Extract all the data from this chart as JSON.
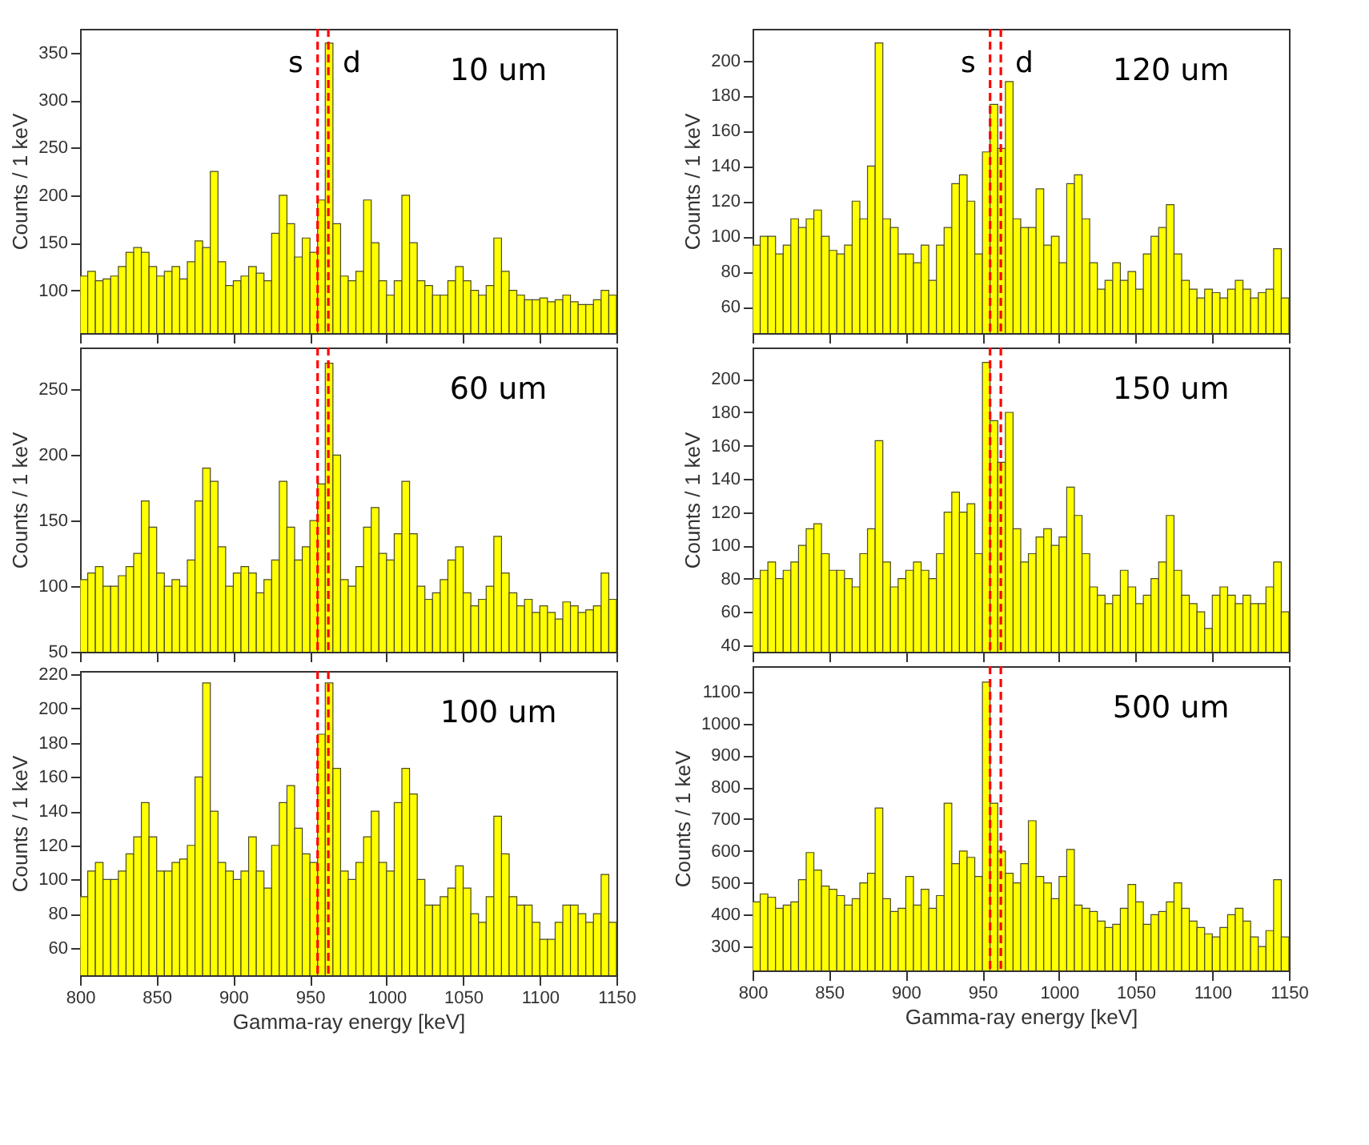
{
  "chart_data": [
    {
      "type": "histogram",
      "annotations": [
        "10 um"
      ],
      "ylabel": "Counts / 1 keV",
      "color": "#ffff00",
      "tick_labels": "y",
      "xlim": [
        800,
        1150
      ],
      "xticks": [
        800,
        850,
        900,
        950,
        1000,
        1050,
        1100,
        1150
      ],
      "ylim": [
        55,
        375
      ],
      "yticks": [
        100,
        150,
        200,
        250,
        300,
        350
      ],
      "ref_lines": [
        {
          "axis": "x",
          "value": 955,
          "label": "s",
          "color": "#ff0000",
          "line_style": "dashed"
        },
        {
          "axis": "x",
          "value": 962,
          "label": "d",
          "color": "#ff0000",
          "line_style": "dashed"
        }
      ],
      "bins": [
        800,
        805,
        810,
        815,
        820,
        825,
        830,
        835,
        840,
        845,
        850,
        855,
        860,
        865,
        870,
        875,
        880,
        885,
        890,
        895,
        900,
        905,
        910,
        915,
        920,
        925,
        930,
        935,
        940,
        945,
        950,
        955,
        960,
        965,
        970,
        975,
        980,
        985,
        990,
        995,
        1000,
        1005,
        1010,
        1015,
        1020,
        1025,
        1030,
        1035,
        1040,
        1045,
        1050,
        1055,
        1060,
        1065,
        1070,
        1075,
        1080,
        1085,
        1090,
        1095,
        1100,
        1105,
        1110,
        1115,
        1120,
        1125,
        1130,
        1135,
        1140,
        1145,
        1150
      ],
      "values": [
        115,
        120,
        110,
        112,
        115,
        125,
        140,
        145,
        140,
        125,
        115,
        120,
        125,
        112,
        130,
        152,
        145,
        225,
        130,
        105,
        110,
        115,
        125,
        118,
        110,
        160,
        200,
        170,
        135,
        155,
        140,
        195,
        360,
        170,
        115,
        110,
        120,
        195,
        150,
        110,
        95,
        110,
        200,
        150,
        110,
        105,
        95,
        95,
        110,
        125,
        110,
        100,
        95,
        105,
        155,
        120,
        100,
        95,
        90,
        90,
        92,
        88,
        90,
        95,
        88,
        85,
        85,
        90,
        100,
        95
      ]
    },
    {
      "type": "histogram",
      "annotations": [
        "120 um"
      ],
      "ylabel": "Counts / 1 keV",
      "color": "#ffff00",
      "tick_labels": "y",
      "xlim": [
        800,
        1150
      ],
      "xticks": [
        800,
        850,
        900,
        950,
        1000,
        1050,
        1100,
        1150
      ],
      "ylim": [
        45,
        218
      ],
      "yticks": [
        60,
        80,
        100,
        120,
        140,
        160,
        180,
        200
      ],
      "ref_lines": [
        {
          "axis": "x",
          "value": 955,
          "label": "s",
          "color": "#ff0000",
          "line_style": "dashed"
        },
        {
          "axis": "x",
          "value": 962,
          "label": "d",
          "color": "#ff0000",
          "line_style": "dashed"
        }
      ],
      "bins": [
        800,
        805,
        810,
        815,
        820,
        825,
        830,
        835,
        840,
        845,
        850,
        855,
        860,
        865,
        870,
        875,
        880,
        885,
        890,
        895,
        900,
        905,
        910,
        915,
        920,
        925,
        930,
        935,
        940,
        945,
        950,
        955,
        960,
        965,
        970,
        975,
        980,
        985,
        990,
        995,
        1000,
        1005,
        1010,
        1015,
        1020,
        1025,
        1030,
        1035,
        1040,
        1045,
        1050,
        1055,
        1060,
        1065,
        1070,
        1075,
        1080,
        1085,
        1090,
        1095,
        1100,
        1105,
        1110,
        1115,
        1120,
        1125,
        1130,
        1135,
        1140,
        1145,
        1150
      ],
      "values": [
        95,
        100,
        100,
        90,
        95,
        110,
        105,
        110,
        115,
        100,
        92,
        90,
        95,
        120,
        110,
        140,
        210,
        110,
        105,
        90,
        90,
        85,
        95,
        75,
        95,
        105,
        130,
        135,
        120,
        90,
        148,
        175,
        150,
        188,
        110,
        105,
        105,
        127,
        95,
        100,
        85,
        130,
        135,
        110,
        85,
        70,
        75,
        85,
        75,
        80,
        70,
        90,
        100,
        105,
        118,
        90,
        75,
        70,
        65,
        70,
        68,
        65,
        70,
        75,
        70,
        65,
        68,
        70,
        93,
        65
      ]
    },
    {
      "type": "histogram",
      "annotations": [
        "60 um"
      ],
      "ylabel": "Counts / 1 keV",
      "color": "#ffff00",
      "tick_labels": "y",
      "xlim": [
        800,
        1150
      ],
      "xticks": [
        800,
        850,
        900,
        950,
        1000,
        1050,
        1100,
        1150
      ],
      "ylim": [
        50,
        282
      ],
      "yticks": [
        50,
        100,
        150,
        200,
        250
      ],
      "ref_lines": [
        {
          "axis": "x",
          "value": 955,
          "color": "#ff0000",
          "line_style": "dashed"
        },
        {
          "axis": "x",
          "value": 962,
          "color": "#ff0000",
          "line_style": "dashed"
        }
      ],
      "bins": [
        800,
        805,
        810,
        815,
        820,
        825,
        830,
        835,
        840,
        845,
        850,
        855,
        860,
        865,
        870,
        875,
        880,
        885,
        890,
        895,
        900,
        905,
        910,
        915,
        920,
        925,
        930,
        935,
        940,
        945,
        950,
        955,
        960,
        965,
        970,
        975,
        980,
        985,
        990,
        995,
        1000,
        1005,
        1010,
        1015,
        1020,
        1025,
        1030,
        1035,
        1040,
        1045,
        1050,
        1055,
        1060,
        1065,
        1070,
        1075,
        1080,
        1085,
        1090,
        1095,
        1100,
        1105,
        1110,
        1115,
        1120,
        1125,
        1130,
        1135,
        1140,
        1145,
        1150
      ],
      "values": [
        105,
        110,
        115,
        100,
        100,
        108,
        115,
        125,
        165,
        145,
        110,
        100,
        105,
        100,
        120,
        165,
        190,
        180,
        130,
        100,
        110,
        115,
        110,
        95,
        105,
        120,
        180,
        145,
        120,
        130,
        150,
        178,
        270,
        200,
        105,
        100,
        115,
        145,
        160,
        125,
        120,
        140,
        180,
        140,
        100,
        90,
        95,
        105,
        120,
        130,
        95,
        85,
        90,
        100,
        138,
        110,
        95,
        85,
        90,
        80,
        85,
        80,
        75,
        88,
        85,
        80,
        82,
        85,
        110,
        90
      ]
    },
    {
      "type": "histogram",
      "annotations": [
        "150 um"
      ],
      "ylabel": "Counts / 1 keV",
      "color": "#ffff00",
      "tick_labels": "y",
      "xlim": [
        800,
        1150
      ],
      "xticks": [
        800,
        850,
        900,
        950,
        1000,
        1050,
        1100,
        1150
      ],
      "ylim": [
        36,
        219
      ],
      "yticks": [
        40,
        60,
        80,
        100,
        120,
        140,
        160,
        180,
        200
      ],
      "ref_lines": [
        {
          "axis": "x",
          "value": 955,
          "color": "#ff0000",
          "line_style": "dashed"
        },
        {
          "axis": "x",
          "value": 962,
          "color": "#ff0000",
          "line_style": "dashed"
        }
      ],
      "bins": [
        800,
        805,
        810,
        815,
        820,
        825,
        830,
        835,
        840,
        845,
        850,
        855,
        860,
        865,
        870,
        875,
        880,
        885,
        890,
        895,
        900,
        905,
        910,
        915,
        920,
        925,
        930,
        935,
        940,
        945,
        950,
        955,
        960,
        965,
        970,
        975,
        980,
        985,
        990,
        995,
        1000,
        1005,
        1010,
        1015,
        1020,
        1025,
        1030,
        1035,
        1040,
        1045,
        1050,
        1055,
        1060,
        1065,
        1070,
        1075,
        1080,
        1085,
        1090,
        1095,
        1100,
        1105,
        1110,
        1115,
        1120,
        1125,
        1130,
        1135,
        1140,
        1145,
        1150
      ],
      "values": [
        80,
        85,
        90,
        80,
        85,
        90,
        100,
        110,
        113,
        95,
        85,
        85,
        80,
        75,
        95,
        110,
        163,
        90,
        75,
        80,
        85,
        90,
        85,
        80,
        95,
        120,
        132,
        120,
        125,
        95,
        210,
        175,
        150,
        180,
        110,
        90,
        95,
        105,
        110,
        100,
        105,
        135,
        118,
        95,
        75,
        70,
        65,
        70,
        85,
        75,
        65,
        70,
        80,
        90,
        118,
        85,
        70,
        65,
        60,
        50,
        70,
        75,
        70,
        65,
        70,
        65,
        65,
        75,
        90,
        60
      ]
    },
    {
      "type": "histogram",
      "annotations": [
        "100 um"
      ],
      "xlabel": "Gamma-ray energy [keV]",
      "ylabel": "Counts / 1 keV",
      "color": "#ffff00",
      "xlim": [
        800,
        1150
      ],
      "xticks": [
        800,
        850,
        900,
        950,
        1000,
        1050,
        1100,
        1150
      ],
      "ylim": [
        44,
        222
      ],
      "yticks": [
        60,
        80,
        100,
        120,
        140,
        160,
        180,
        200,
        220
      ],
      "ref_lines": [
        {
          "axis": "x",
          "value": 955,
          "color": "#ff0000",
          "line_style": "dashed"
        },
        {
          "axis": "x",
          "value": 962,
          "color": "#ff0000",
          "line_style": "dashed"
        }
      ],
      "bins": [
        800,
        805,
        810,
        815,
        820,
        825,
        830,
        835,
        840,
        845,
        850,
        855,
        860,
        865,
        870,
        875,
        880,
        885,
        890,
        895,
        900,
        905,
        910,
        915,
        920,
        925,
        930,
        935,
        940,
        945,
        950,
        955,
        960,
        965,
        970,
        975,
        980,
        985,
        990,
        995,
        1000,
        1005,
        1010,
        1015,
        1020,
        1025,
        1030,
        1035,
        1040,
        1045,
        1050,
        1055,
        1060,
        1065,
        1070,
        1075,
        1080,
        1085,
        1090,
        1095,
        1100,
        1105,
        1110,
        1115,
        1120,
        1125,
        1130,
        1135,
        1140,
        1145,
        1150
      ],
      "values": [
        90,
        105,
        110,
        100,
        100,
        105,
        115,
        125,
        145,
        125,
        105,
        105,
        110,
        112,
        120,
        160,
        215,
        140,
        110,
        105,
        100,
        105,
        125,
        105,
        95,
        120,
        145,
        155,
        130,
        115,
        110,
        185,
        215,
        165,
        105,
        100,
        110,
        125,
        140,
        110,
        105,
        145,
        165,
        150,
        100,
        85,
        85,
        90,
        95,
        108,
        95,
        80,
        75,
        90,
        137,
        115,
        90,
        85,
        85,
        75,
        65,
        65,
        75,
        85,
        85,
        80,
        75,
        80,
        103,
        75
      ]
    },
    {
      "type": "histogram",
      "annotations": [
        "500 um"
      ],
      "xlabel": "Gamma-ray energy [keV]",
      "ylabel": "Counts / 1 keV",
      "color": "#ffff00",
      "xlim": [
        800,
        1150
      ],
      "xticks": [
        800,
        850,
        900,
        950,
        1000,
        1050,
        1100,
        1150
      ],
      "ylim": [
        225,
        1180
      ],
      "yticks": [
        300,
        400,
        500,
        600,
        700,
        800,
        900,
        1000,
        1100
      ],
      "ref_lines": [
        {
          "axis": "x",
          "value": 955,
          "color": "#ff0000",
          "line_style": "dashed"
        },
        {
          "axis": "x",
          "value": 962,
          "color": "#ff0000",
          "line_style": "dashed"
        }
      ],
      "bins": [
        800,
        805,
        810,
        815,
        820,
        825,
        830,
        835,
        840,
        845,
        850,
        855,
        860,
        865,
        870,
        875,
        880,
        885,
        890,
        895,
        900,
        905,
        910,
        915,
        920,
        925,
        930,
        935,
        940,
        945,
        950,
        955,
        960,
        965,
        970,
        975,
        980,
        985,
        990,
        995,
        1000,
        1005,
        1010,
        1015,
        1020,
        1025,
        1030,
        1035,
        1040,
        1045,
        1050,
        1055,
        1060,
        1065,
        1070,
        1075,
        1080,
        1085,
        1090,
        1095,
        1100,
        1105,
        1110,
        1115,
        1120,
        1125,
        1130,
        1135,
        1140,
        1145,
        1150
      ],
      "values": [
        440,
        465,
        455,
        420,
        430,
        440,
        510,
        595,
        540,
        490,
        480,
        460,
        430,
        450,
        500,
        530,
        735,
        450,
        410,
        420,
        520,
        430,
        480,
        420,
        460,
        750,
        560,
        600,
        580,
        520,
        1130,
        750,
        600,
        530,
        500,
        560,
        695,
        520,
        500,
        450,
        520,
        605,
        430,
        420,
        410,
        380,
        360,
        370,
        420,
        495,
        440,
        370,
        400,
        410,
        440,
        500,
        420,
        380,
        360,
        340,
        330,
        360,
        400,
        420,
        380,
        330,
        300,
        350,
        510,
        330
      ]
    }
  ]
}
